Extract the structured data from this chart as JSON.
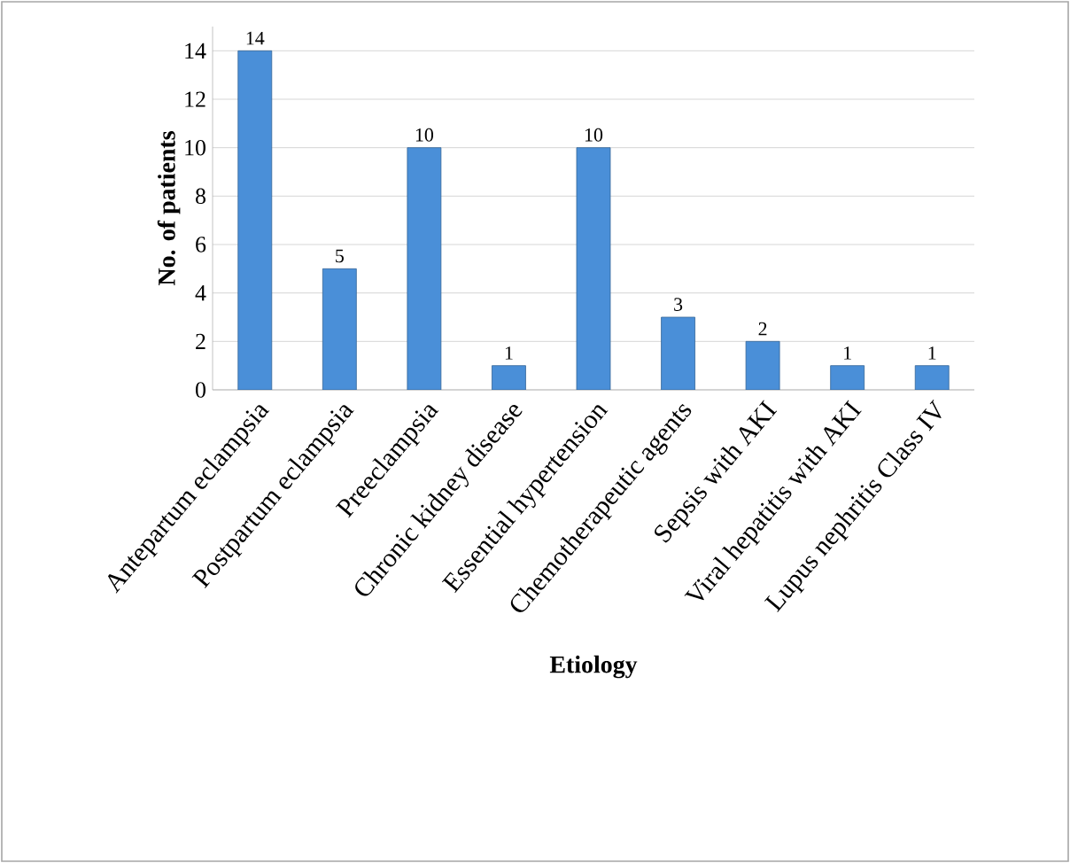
{
  "chart_data": {
    "type": "bar",
    "xlabel": "Etiology",
    "ylabel": "No. of patients",
    "categories": [
      "Antepartum eclampsia",
      "Postpartum eclampsia",
      "Preeclampsia",
      "Chronic kidney disease",
      "Essential hypertension",
      "Chemotherapeutic agents",
      "Sepsis with AKI",
      "Viral hepatitis with AKI",
      "Lupus nephritis Class IV"
    ],
    "values": [
      14,
      5,
      10,
      1,
      10,
      3,
      2,
      1,
      1
    ],
    "color": "#4a8fd8",
    "ylim": [
      0,
      15
    ],
    "yticks": [
      0,
      2,
      4,
      6,
      8,
      10,
      12,
      14
    ],
    "grid": "y",
    "data_labels": true
  }
}
